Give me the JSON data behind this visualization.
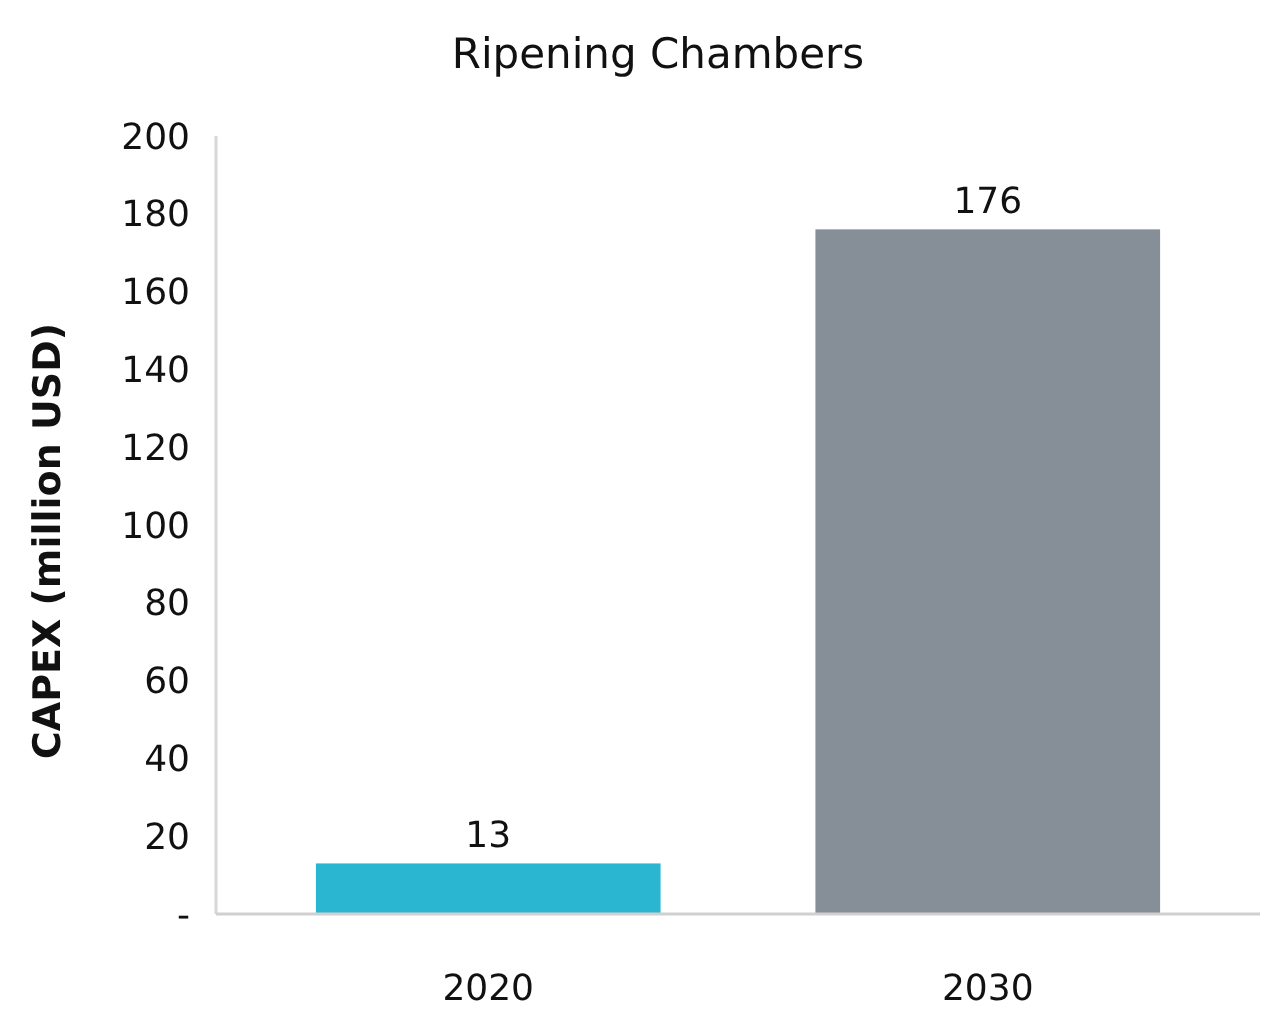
{
  "chart_data": {
    "type": "bar",
    "title": "Ripening Chambers",
    "ylabel": "CAPEX (million USD)",
    "categories": [
      "2020",
      "2030"
    ],
    "values": [
      13,
      176
    ],
    "colors": [
      "#2ab6d1",
      "#868f98"
    ],
    "ylim": [
      0,
      200
    ],
    "yticks": [
      {
        "value": 0,
        "label": "-"
      },
      20,
      40,
      60,
      80,
      100,
      120,
      140,
      160,
      180,
      200
    ],
    "data_labels": true
  }
}
